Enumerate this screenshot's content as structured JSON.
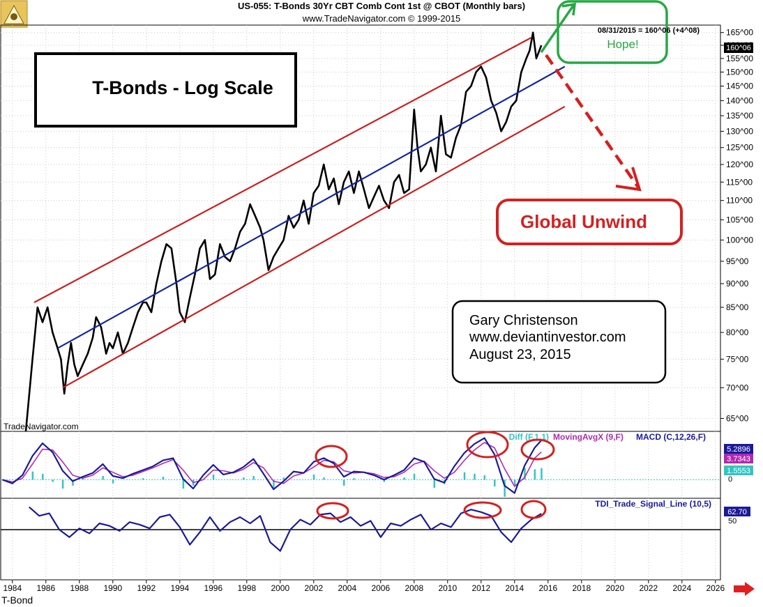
{
  "header": {
    "title": "US-055:  T-Bonds 30Yr CBT Comb Cont 1st @ CBOT  (Monthly bars)",
    "copyright": "www.TradeNavigator.com © 1999-2015"
  },
  "watermark": "TradeNavigator.com",
  "symbol_label": "T-Bond",
  "annotations": {
    "title_box": "T-Bonds - Log Scale",
    "hope": "Hope!",
    "global_unwind": "Global Unwind",
    "author": "Gary Christenson",
    "website": "www.deviantinvestor.com",
    "date": "August 23, 2015",
    "last_quote": "08/31/2015 = 160^06 (+4^08)"
  },
  "colors": {
    "price": "#000000",
    "channel": "#cc1f1f",
    "trend": "#1428a0",
    "macd": "#1a1a9a",
    "signal": "#b02ab0",
    "diff": "#33c4c4",
    "hope": "#27a844",
    "unwind": "#d42020",
    "grid": "#c8c8c8"
  },
  "chart_data": [
    {
      "type": "line",
      "title": "US-055:  T-Bonds 30Yr CBT Comb Cont 1st @ CBOT  (Monthly bars)",
      "scale": "log",
      "grid": true,
      "xlim": [
        1983.3,
        2026.3
      ],
      "ylim": [
        63,
        168
      ],
      "x_ticks": [
        "1984",
        "1986",
        "1988",
        "1990",
        "1992",
        "1994",
        "1996",
        "1998",
        "2000",
        "2002",
        "2004",
        "2006",
        "2008",
        "2010",
        "2012",
        "2014",
        "2016",
        "2018",
        "2020",
        "2022",
        "2024",
        "2026"
      ],
      "y_ticks": [
        "65^00",
        "70^00",
        "75^00",
        "80^00",
        "85^00",
        "90^00",
        "95^00",
        "100^00",
        "105^00",
        "110^00",
        "115^00",
        "120^00",
        "125^00",
        "130^00",
        "135^00",
        "140^00",
        "145^00",
        "150^00",
        "155^00",
        "160^00",
        "165^00"
      ],
      "y_tick_values": [
        65,
        70,
        75,
        80,
        85,
        90,
        95,
        100,
        105,
        110,
        115,
        120,
        125,
        130,
        135,
        140,
        145,
        150,
        155,
        160,
        165
      ],
      "last_value_label": "160^06",
      "series": [
        {
          "role": "price",
          "x": [
            1984.8,
            1985.2,
            1985.5,
            1985.8,
            1986.1,
            1986.4,
            1986.7,
            1986.9,
            1987.1,
            1987.3,
            1987.5,
            1987.7,
            1987.9,
            1988.2,
            1988.5,
            1988.8,
            1989.0,
            1989.3,
            1989.6,
            1989.8,
            1990.0,
            1990.3,
            1990.6,
            1990.9,
            1991.2,
            1991.5,
            1991.8,
            1992.0,
            1992.3,
            1992.6,
            1992.9,
            1993.2,
            1993.5,
            1993.8,
            1994.0,
            1994.3,
            1994.6,
            1994.9,
            1995.2,
            1995.5,
            1995.8,
            1996.1,
            1996.4,
            1996.7,
            1997.0,
            1997.3,
            1997.6,
            1997.9,
            1998.2,
            1998.5,
            1998.8,
            1999.0,
            1999.3,
            1999.6,
            1999.9,
            2000.2,
            2000.5,
            2000.8,
            2001.1,
            2001.4,
            2001.7,
            2002.0,
            2002.3,
            2002.6,
            2002.9,
            2003.2,
            2003.5,
            2003.8,
            2004.1,
            2004.4,
            2004.7,
            2005.0,
            2005.3,
            2005.6,
            2005.9,
            2006.2,
            2006.5,
            2006.8,
            2007.1,
            2007.4,
            2007.7,
            2008.0,
            2008.2,
            2008.4,
            2008.7,
            2009.0,
            2009.3,
            2009.6,
            2009.9,
            2010.2,
            2010.5,
            2010.8,
            2011.1,
            2011.4,
            2011.7,
            2012.0,
            2012.3,
            2012.6,
            2012.9,
            2013.2,
            2013.5,
            2013.8,
            2014.1,
            2014.4,
            2014.7,
            2014.9,
            2015.1,
            2015.3,
            2015.6
          ],
          "y": [
            63,
            75,
            85,
            82,
            85,
            80,
            77,
            75,
            69,
            74,
            78,
            74,
            72,
            74,
            76,
            79,
            83,
            81,
            76,
            78,
            77,
            80,
            76,
            78,
            81,
            84,
            86,
            86,
            84,
            90,
            95,
            99,
            98,
            90,
            84,
            82,
            87,
            92,
            98,
            100,
            91,
            92,
            99,
            96,
            95,
            98,
            102,
            104,
            109,
            106,
            103,
            100,
            93,
            96,
            98,
            100,
            106,
            103,
            105,
            110,
            104,
            112,
            114,
            120,
            113,
            116,
            109,
            115,
            118,
            112,
            118,
            113,
            108,
            111,
            114,
            110,
            108,
            115,
            117,
            112,
            113,
            137,
            125,
            118,
            120,
            125,
            118,
            135,
            123,
            122,
            128,
            132,
            143,
            145,
            150,
            152,
            148,
            140,
            136,
            130,
            133,
            138,
            140,
            150,
            155,
            158,
            165,
            155,
            160
          ]
        },
        {
          "role": "channel-top",
          "x": [
            1985.3,
            2015.0
          ],
          "y": [
            86,
            163
          ]
        },
        {
          "role": "trend",
          "x": [
            1986.7,
            2017.0
          ],
          "y": [
            77,
            152
          ]
        },
        {
          "role": "channel-bottom",
          "x": [
            1987.0,
            2017.0
          ],
          "y": [
            70,
            138
          ]
        }
      ]
    },
    {
      "type": "line",
      "title": "",
      "legend": [
        "Diff (F,1,1)",
        "MovingAvgX (9,F)",
        "MACD (C,12,26,F)"
      ],
      "y_ticks": [
        "0"
      ],
      "last_values": {
        "macd": "5.2896",
        "signal": "3.7343",
        "diff": "1.5553"
      },
      "ylim": [
        -2.5,
        6.5
      ],
      "series": [
        {
          "name": "MACD (C,12,26,F)",
          "x": [
            1983.4,
            1984.0,
            1984.6,
            1985.2,
            1985.8,
            1986.4,
            1987.0,
            1987.6,
            1988.2,
            1988.8,
            1989.4,
            1990.0,
            1990.6,
            1991.2,
            1991.8,
            1992.4,
            1993.0,
            1993.6,
            1994.2,
            1994.8,
            1995.4,
            1996.0,
            1996.6,
            1997.2,
            1997.8,
            1998.4,
            1999.0,
            1999.6,
            2000.2,
            2000.8,
            2001.4,
            2002.0,
            2002.6,
            2003.2,
            2003.8,
            2004.4,
            2005.0,
            2005.6,
            2006.2,
            2006.8,
            2007.4,
            2008.0,
            2008.6,
            2009.2,
            2009.8,
            2010.4,
            2011.0,
            2011.6,
            2012.2,
            2012.8,
            2013.4,
            2014.0,
            2014.6,
            2015.2,
            2015.6
          ],
          "values": [
            0,
            -0.5,
            0.6,
            3.2,
            4.9,
            3.7,
            1.2,
            -0.2,
            0.4,
            0.9,
            2.1,
            0.5,
            0.2,
            0.8,
            1.3,
            1.8,
            2.6,
            2.9,
            0.1,
            -1.2,
            0.6,
            2.0,
            0.7,
            1.0,
            1.7,
            2.8,
            0.8,
            -1.3,
            -0.2,
            1.1,
            0.9,
            2.4,
            2.9,
            2.2,
            0.4,
            1.1,
            1.0,
            0.6,
            0.0,
            0.6,
            1.3,
            2.9,
            2.4,
            0.1,
            -0.4,
            1.8,
            3.6,
            4.8,
            5.6,
            3.4,
            -0.8,
            -1.8,
            1.9,
            4.3,
            5.29
          ]
        },
        {
          "name": "MovingAvgX (9,F)",
          "x": [
            1983.4,
            1984.0,
            1984.6,
            1985.2,
            1985.8,
            1986.4,
            1987.0,
            1987.6,
            1988.2,
            1988.8,
            1989.4,
            1990.0,
            1990.6,
            1991.2,
            1991.8,
            1992.4,
            1993.0,
            1993.6,
            1994.2,
            1994.8,
            1995.4,
            1996.0,
            1996.6,
            1997.2,
            1997.8,
            1998.4,
            1999.0,
            1999.6,
            2000.2,
            2000.8,
            2001.4,
            2002.0,
            2002.6,
            2003.2,
            2003.8,
            2004.4,
            2005.0,
            2005.6,
            2006.2,
            2006.8,
            2007.4,
            2008.0,
            2008.6,
            2009.2,
            2009.8,
            2010.4,
            2011.0,
            2011.6,
            2012.2,
            2012.8,
            2013.4,
            2014.0,
            2014.6,
            2015.2,
            2015.6
          ],
          "values": [
            0,
            -0.3,
            0.2,
            2.1,
            4.1,
            4.0,
            2.4,
            0.6,
            0.2,
            0.6,
            1.6,
            1.0,
            0.4,
            0.6,
            1.1,
            1.6,
            2.2,
            2.7,
            1.3,
            -0.4,
            0.0,
            1.3,
            1.2,
            0.9,
            1.4,
            2.3,
            1.6,
            -0.2,
            -0.5,
            0.5,
            0.9,
            1.7,
            2.6,
            2.4,
            1.2,
            0.9,
            1.0,
            0.8,
            0.3,
            0.4,
            1.0,
            2.1,
            2.5,
            1.2,
            0.2,
            1.0,
            2.6,
            4.0,
            5.0,
            4.3,
            1.5,
            -0.9,
            0.3,
            2.9,
            3.73
          ]
        },
        {
          "name": "Diff (F,1,1)",
          "x": [
            1985.2,
            1985.8,
            1986.4,
            1987.0,
            1987.6,
            1988.2,
            1989.4,
            1990.0,
            1991.8,
            1993.0,
            1994.2,
            1994.8,
            1996.0,
            1997.8,
            1998.4,
            1999.6,
            2000.2,
            2002.0,
            2002.6,
            2003.8,
            2004.4,
            2006.2,
            2007.4,
            2008.0,
            2009.2,
            2009.8,
            2011.0,
            2011.6,
            2012.2,
            2012.8,
            2013.4,
            2014.0,
            2014.6,
            2015.2,
            2015.6
          ],
          "values": [
            1.1,
            0.8,
            -0.3,
            -1.2,
            -0.8,
            0.2,
            0.5,
            -0.5,
            0.2,
            0.4,
            -1.2,
            -0.8,
            0.7,
            0.3,
            0.5,
            -1.1,
            0.3,
            0.7,
            0.3,
            -0.8,
            0.2,
            -0.3,
            0.3,
            0.8,
            -1.1,
            -0.6,
            1.0,
            0.8,
            0.6,
            -0.9,
            -2.3,
            -0.9,
            1.6,
            1.4,
            1.56
          ]
        }
      ]
    },
    {
      "type": "line",
      "title": "",
      "legend": [
        "TDI_Trade_Signal_Line (10,5)"
      ],
      "y_ticks": [
        "50"
      ],
      "last_value": "62.70",
      "ylim": [
        10,
        75
      ],
      "series": [
        {
          "name": "TDI_Trade_Signal_Line (10,5)",
          "x": [
            1985.0,
            1985.6,
            1986.2,
            1986.8,
            1987.4,
            1988.0,
            1988.6,
            1989.2,
            1989.8,
            1990.4,
            1991.0,
            1991.6,
            1992.2,
            1992.8,
            1993.4,
            1994.0,
            1994.6,
            1995.2,
            1995.8,
            1996.4,
            1997.0,
            1997.6,
            1998.2,
            1998.8,
            1999.4,
            2000.0,
            2000.6,
            2001.2,
            2001.8,
            2002.4,
            2003.0,
            2003.6,
            2004.2,
            2004.8,
            2005.4,
            2006.0,
            2006.6,
            2007.2,
            2007.8,
            2008.4,
            2009.0,
            2009.6,
            2010.2,
            2010.8,
            2011.4,
            2012.0,
            2012.6,
            2013.2,
            2013.8,
            2014.4,
            2015.0,
            2015.6
          ],
          "values": [
            68,
            61,
            63,
            50,
            44,
            51,
            47,
            55,
            53,
            49,
            56,
            54,
            51,
            60,
            62,
            52,
            38,
            48,
            60,
            49,
            56,
            60,
            55,
            61,
            40,
            33,
            50,
            58,
            54,
            62,
            63,
            56,
            60,
            53,
            57,
            44,
            55,
            53,
            58,
            62,
            50,
            55,
            52,
            63,
            66,
            64,
            61,
            48,
            40,
            51,
            58,
            62.7
          ]
        }
      ]
    }
  ]
}
